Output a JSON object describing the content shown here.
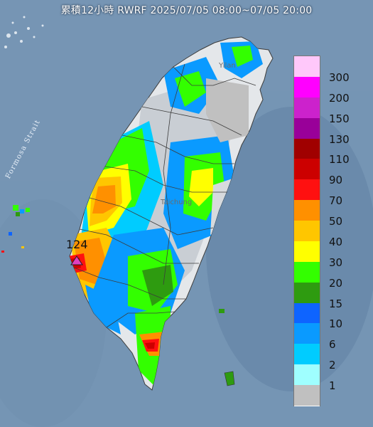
{
  "title": "累積12小時 RWRF 2025/07/05 08:00~07/05 20:00",
  "strait_label": "Formosa Strait",
  "max_value_label": "124",
  "city_labels": {
    "north": "Yilan",
    "center": "Taichung"
  },
  "colors": {
    "sea": "#6f8fae",
    "land": "#e4e7ea",
    "mountain": "#c9ced4",
    "border": "#3c3c3c",
    "max_marker": "#e040c0"
  },
  "legend": {
    "levels": [
      {
        "label": "300",
        "color": "#ffc8fa"
      },
      {
        "label": "200",
        "color": "#ff00ff"
      },
      {
        "label": "150",
        "color": "#cc22cc"
      },
      {
        "label": "130",
        "color": "#990099"
      },
      {
        "label": "110",
        "color": "#a00000"
      },
      {
        "label": "90",
        "color": "#cc0000"
      },
      {
        "label": "70",
        "color": "#ff1010"
      },
      {
        "label": "50",
        "color": "#ff9000"
      },
      {
        "label": "40",
        "color": "#ffc600"
      },
      {
        "label": "30",
        "color": "#ffff00"
      },
      {
        "label": "20",
        "color": "#33ff00"
      },
      {
        "label": "15",
        "color": "#2e9b10"
      },
      {
        "label": "10",
        "color": "#0e64ff"
      },
      {
        "label": "6",
        "color": "#0a9aff"
      },
      {
        "label": "2",
        "color": "#00ccff"
      },
      {
        "label": "1",
        "color": "#9fffff"
      },
      {
        "label": "",
        "color": "#c0c0c0"
      }
    ]
  }
}
